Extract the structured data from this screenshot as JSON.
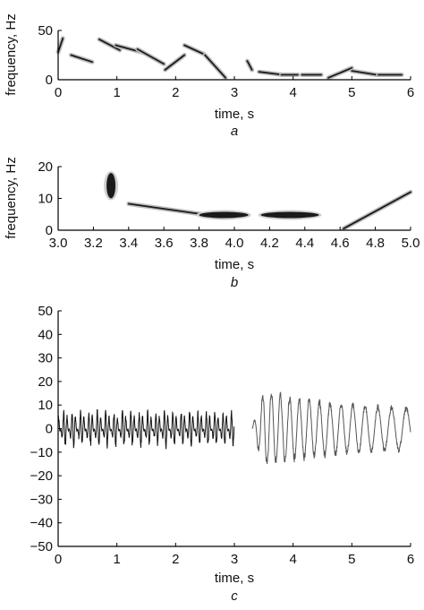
{
  "chart_data": [
    {
      "type": "spectrogram",
      "caption": "a",
      "xlabel": "time, s",
      "ylabel": "frequency, Hz",
      "xlim": [
        0,
        6
      ],
      "ylim": [
        0,
        50
      ],
      "xticks": [
        "0",
        "1",
        "2",
        "3",
        "4",
        "5",
        "6"
      ],
      "yticks": [
        "0",
        "50"
      ],
      "ridges": [
        {
          "x": [
            0.0,
            0.08
          ],
          "y": [
            28,
            42
          ]
        },
        {
          "x": [
            0.22,
            0.58
          ],
          "y": [
            25,
            18
          ]
        },
        {
          "x": [
            0.7,
            1.05
          ],
          "y": [
            41,
            30
          ]
        },
        {
          "x": [
            0.98,
            1.42
          ],
          "y": [
            35,
            28
          ]
        },
        {
          "x": [
            1.35,
            1.8
          ],
          "y": [
            31,
            16
          ]
        },
        {
          "x": [
            1.82,
            2.15
          ],
          "y": [
            10,
            25
          ]
        },
        {
          "x": [
            2.15,
            2.48
          ],
          "y": [
            35,
            26
          ]
        },
        {
          "x": [
            2.5,
            2.85
          ],
          "y": [
            25,
            2
          ]
        },
        {
          "x": [
            3.22,
            3.3
          ],
          "y": [
            19,
            10
          ]
        },
        {
          "x": [
            3.42,
            3.82
          ],
          "y": [
            8,
            5
          ]
        },
        {
          "x": [
            3.8,
            4.08
          ],
          "y": [
            5,
            5
          ]
        },
        {
          "x": [
            4.15,
            4.48
          ],
          "y": [
            5,
            5
          ]
        },
        {
          "x": [
            4.6,
            5.0
          ],
          "y": [
            2,
            12
          ]
        },
        {
          "x": [
            5.0,
            5.42
          ],
          "y": [
            9,
            5
          ]
        },
        {
          "x": [
            5.45,
            5.85
          ],
          "y": [
            5,
            5
          ]
        }
      ]
    },
    {
      "type": "spectrogram",
      "caption": "b",
      "xlabel": "time, s",
      "ylabel": "frequency, Hz",
      "xlim": [
        3.0,
        5.0
      ],
      "ylim": [
        0,
        20
      ],
      "xticks": [
        "3.0",
        "3.2",
        "3.4",
        "3.6",
        "3.8",
        "4.0",
        "4.2",
        "4.4",
        "4.6",
        "4.8",
        "5.0"
      ],
      "yticks": [
        "0",
        "10",
        "20"
      ],
      "ridges": [
        {
          "x": [
            3.28,
            3.32
          ],
          "y": [
            18,
            10
          ],
          "shape": "blob"
        },
        {
          "x": [
            3.4,
            3.82
          ],
          "y": [
            8.3,
            5.0
          ]
        },
        {
          "x": [
            3.8,
            4.08
          ],
          "y": [
            4.8,
            4.8
          ],
          "shape": "blob"
        },
        {
          "x": [
            4.15,
            4.48
          ],
          "y": [
            4.8,
            4.8
          ],
          "shape": "blob"
        },
        {
          "x": [
            4.62,
            5.0
          ],
          "y": [
            0.5,
            12.0
          ]
        }
      ]
    },
    {
      "type": "line",
      "caption": "c",
      "xlabel": "time, s",
      "ylabel": "",
      "xlim": [
        0,
        6
      ],
      "ylim": [
        -50,
        50
      ],
      "xticks": [
        "0",
        "1",
        "2",
        "3",
        "4",
        "5",
        "6"
      ],
      "yticks": [
        "−50",
        "−40",
        "−30",
        "−20",
        "−10",
        "0",
        "10",
        "20",
        "30",
        "40",
        "50"
      ],
      "series": [
        {
          "segment": "first",
          "t_range": [
            0,
            3
          ],
          "amplitude": 9,
          "style": "dense high-frequency oscillation"
        },
        {
          "segment": "second",
          "t_range": [
            3.3,
            6
          ],
          "amplitude_peak": 20,
          "style": "lower-frequency decaying oscillation"
        }
      ]
    }
  ]
}
